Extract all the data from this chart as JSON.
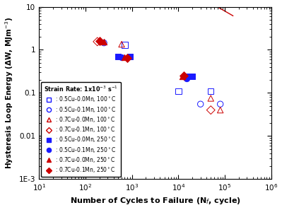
{
  "title": "",
  "xlabel": "Number of Cycles to Failure (N$_f$, cycle)",
  "ylabel": "Hysteresis Loop Energy (ΔW, MJm$^{-3}$)",
  "xlim": [
    10,
    1000000.0
  ],
  "ylim": [
    0.001,
    10
  ],
  "legend_title": "Strain Rate: 1x10$^{-3}$ s$^{-1}$",
  "series": [
    {
      "label": " : 0.5Cu-0.0Mn, 100$^\\circ$C",
      "marker": "s",
      "color": "#1a1aff",
      "filled": false,
      "x": [
        700,
        10000,
        50000
      ],
      "y": [
        1.3,
        0.11,
        0.11
      ]
    },
    {
      "label": " : 0.5Cu-0.1Mn, 100$^\\circ$C",
      "marker": "o",
      "color": "#1a1aff",
      "filled": false,
      "x": [
        250,
        30000,
        80000
      ],
      "y": [
        1.45,
        0.055,
        0.055
      ]
    },
    {
      "label": " : 0.7Cu-0.0Mn, 100$^\\circ$C",
      "marker": "^",
      "color": "#cc0000",
      "filled": false,
      "x": [
        600,
        50000,
        80000
      ],
      "y": [
        1.35,
        0.075,
        0.04
      ]
    },
    {
      "label": " : 0.7Cu-0.1Mn, 100$^\\circ$C",
      "marker": "D",
      "color": "#cc0000",
      "filled": false,
      "x": [
        180,
        50000
      ],
      "y": [
        1.55,
        0.04
      ]
    },
    {
      "label": " : 0.5Cu-0.0Mn, 250$^\\circ$C",
      "marker": "s",
      "color": "#1a1aff",
      "filled": true,
      "x": [
        500,
        900,
        15000,
        20000
      ],
      "y": [
        0.7,
        0.7,
        0.24,
        0.24
      ]
    },
    {
      "label": " : 0.5Cu-0.1Mn, 250$^\\circ$C",
      "marker": "o",
      "color": "#1a1aff",
      "filled": true,
      "x": [
        600,
        15000
      ],
      "y": [
        0.68,
        0.22
      ]
    },
    {
      "label": " : 0.7Cu-0.0Mn, 250$^\\circ$C",
      "marker": "^",
      "color": "#cc0000",
      "filled": true,
      "x": [
        250,
        700,
        12000
      ],
      "y": [
        1.55,
        0.68,
        0.24
      ]
    },
    {
      "label": " : 0.7Cu-0.1Mn, 250$^\\circ$C",
      "marker": "D",
      "color": "#cc0000",
      "filled": true,
      "x": [
        200,
        800,
        13000
      ],
      "y": [
        1.6,
        0.65,
        0.25
      ]
    }
  ],
  "fit_x_start": 65,
  "fit_x_end": 150000,
  "fit_slope": -0.62,
  "fit_intercept_log": 4.0,
  "fit_color": "#cc0000",
  "ytick_positions": [
    0.001,
    0.01,
    0.1,
    1,
    10
  ],
  "ytick_labels": [
    "1E-3",
    "0.01",
    "0.1",
    "1",
    "10"
  ],
  "xtick_positions": [
    10,
    100,
    1000,
    10000,
    100000,
    1000000
  ],
  "xtick_labels": [
    "10$^1$",
    "10$^2$",
    "10$^3$",
    "10$^4$",
    "10$^5$",
    "10$^6$"
  ],
  "legend_loc": "lower left",
  "legend_fontsize": 5.5,
  "legend_title_fontsize": 5.8,
  "marker_size": 6,
  "xlabel_fontsize": 8,
  "ylabel_fontsize": 7.5
}
